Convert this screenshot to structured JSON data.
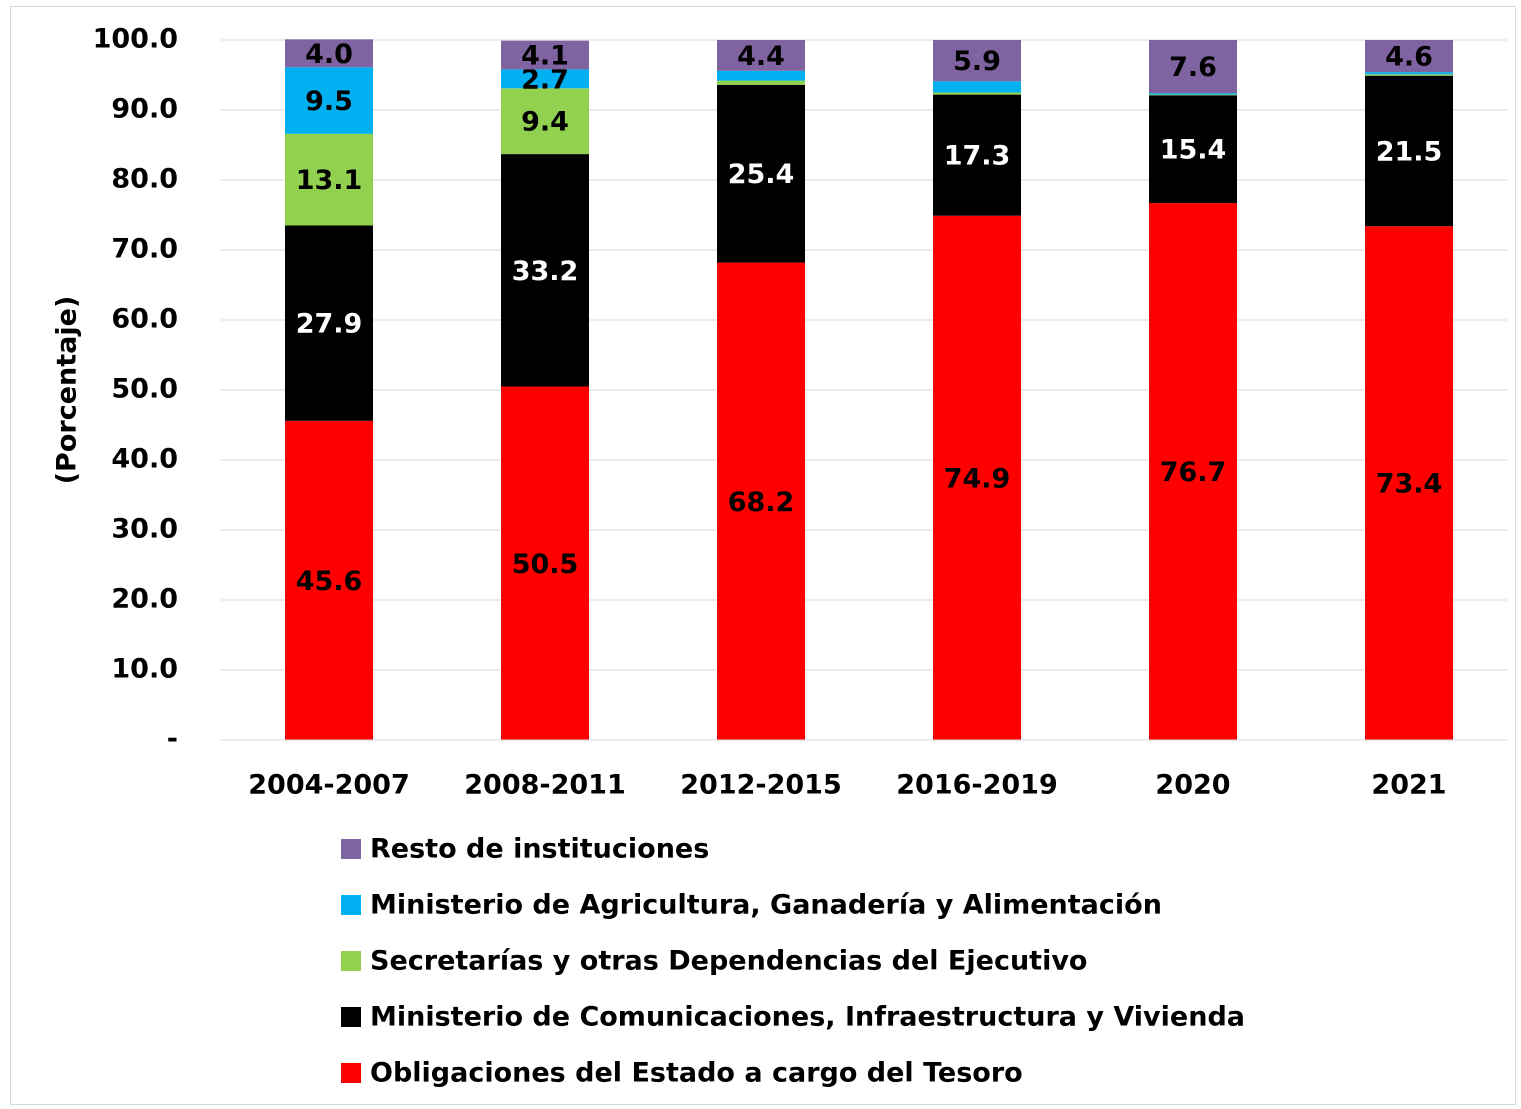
{
  "chart_data": {
    "type": "stacked_bar",
    "y_label": "(Porcentaje)",
    "categories": [
      "2004-2007",
      "2008-2011",
      "2012-2015",
      "2016-2019",
      "2020",
      "2021"
    ],
    "series": [
      {
        "name": "Obligaciones del Estado a cargo del Tesoro",
        "color": "#ff0000",
        "label_color": "#000000",
        "values": [
          45.6,
          50.5,
          68.2,
          74.9,
          76.7,
          73.4
        ]
      },
      {
        "name": "Ministerio de Comunicaciones, Infraestructura y Vivienda",
        "color": "#000000",
        "label_color": "#ffffff",
        "values": [
          27.9,
          33.2,
          25.4,
          17.3,
          15.4,
          21.5
        ]
      },
      {
        "name": "Secretarías y otras Dependencias del Ejecutivo",
        "color": "#92d050",
        "label_color": "#000000",
        "values": [
          13.1,
          9.4,
          0.6,
          0.3,
          0.1,
          0.2
        ]
      },
      {
        "name": "Ministerio de Agricultura, Ganadería y Alimentación",
        "color": "#00b0f0",
        "label_color": "#000000",
        "values": [
          9.5,
          2.7,
          1.4,
          1.6,
          0.2,
          0.3
        ]
      },
      {
        "name": "Resto de instituciones",
        "color": "#8064a2",
        "label_color": "#000000",
        "values": [
          4.0,
          4.1,
          4.4,
          5.9,
          7.6,
          4.6
        ],
        "value_labels": [
          "4.0",
          "4.1",
          "4.4",
          "5.9",
          "7.6",
          "4.6"
        ]
      }
    ],
    "label_series": [
      0,
      1,
      2,
      3,
      4
    ],
    "series_labels_shown": [
      [
        true,
        true,
        true,
        true,
        true,
        true
      ],
      [
        true,
        true,
        true,
        true,
        true,
        true
      ],
      [
        true,
        true,
        false,
        false,
        false,
        false
      ],
      [
        true,
        true,
        false,
        false,
        false,
        false
      ],
      [
        true,
        true,
        true,
        true,
        true,
        true
      ]
    ],
    "ylim": [
      0,
      100
    ],
    "yticks": [
      {
        "value": 0,
        "label": "-"
      },
      {
        "value": 10,
        "label": "10.0"
      },
      {
        "value": 20,
        "label": "20.0"
      },
      {
        "value": 30,
        "label": "30.0"
      },
      {
        "value": 40,
        "label": "40.0"
      },
      {
        "value": 50,
        "label": "50.0"
      },
      {
        "value": 60,
        "label": "60.0"
      },
      {
        "value": 70,
        "label": "70.0"
      },
      {
        "value": 80,
        "label": "80.0"
      },
      {
        "value": 90,
        "label": "90.0"
      },
      {
        "value": 100,
        "label": "100.0"
      }
    ],
    "grid": true,
    "legend": "bottom"
  }
}
